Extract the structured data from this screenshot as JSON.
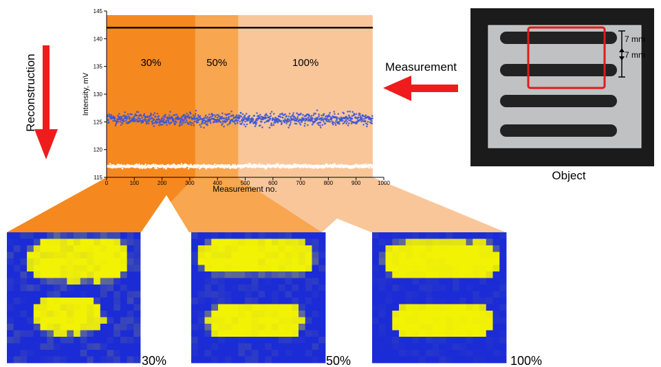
{
  "chart": {
    "ylabel": "Intensity, mV",
    "xlabel": "Measurement no.",
    "zones": [
      "30%",
      "50%",
      "100%"
    ]
  },
  "reconstructions": [
    {
      "label": "30%"
    },
    {
      "label": "50%"
    },
    {
      "label": "100%"
    }
  ],
  "labels": {
    "reconstruction": "Reconstruction",
    "measurement": "Measurement",
    "object": "Object",
    "dim1": "7 mm",
    "dim2": "7 mm"
  },
  "colors": {
    "zone_30": "#f5891f",
    "zone_50": "#f8a64f",
    "zone_100": "#f9c69a",
    "arrow": "#ee1c1c",
    "signal_points": "#3a55d8",
    "reference_points": "#ffffff",
    "map_low": "#1b2bd6",
    "map_high": "#f2f205"
  },
  "chart_data": {
    "type": "scatter",
    "xlim": [
      0,
      1000
    ],
    "ylim": [
      115,
      145
    ],
    "xticks": [
      0,
      100,
      200,
      300,
      400,
      500,
      600,
      700,
      800,
      900,
      1000
    ],
    "yticks": [
      115,
      120,
      125,
      130,
      135,
      140,
      145
    ],
    "zones": [
      {
        "label": "30%",
        "x": [
          0,
          320
        ]
      },
      {
        "label": "50%",
        "x": [
          320,
          475
        ]
      },
      {
        "label": "100%",
        "x": [
          475,
          960
        ]
      }
    ],
    "hline": 142,
    "series": [
      {
        "mean": 125.5,
        "spread": 1.5,
        "count": 960
      },
      {
        "mean": 117,
        "spread": 0.4,
        "count": 960
      }
    ]
  }
}
